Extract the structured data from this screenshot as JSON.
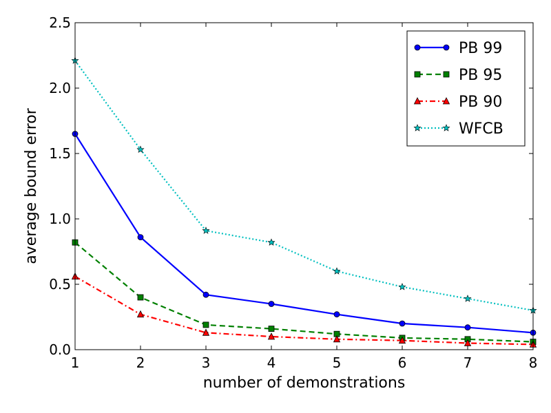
{
  "chart_data": {
    "type": "line",
    "title": "",
    "xlabel": "number of demonstrations",
    "ylabel": "average bound error",
    "xlim": [
      1,
      8
    ],
    "ylim": [
      0.0,
      2.5
    ],
    "xticks": [
      "1",
      "2",
      "3",
      "4",
      "5",
      "6",
      "7",
      "8"
    ],
    "yticks": [
      "0.0",
      "0.5",
      "1.0",
      "1.5",
      "2.0",
      "2.5"
    ],
    "grid": false,
    "legend_position": "top-right",
    "x": [
      1,
      2,
      3,
      4,
      5,
      6,
      7,
      8
    ],
    "series": [
      {
        "name": "PB 99",
        "color": "#0000ff",
        "linestyle": "solid",
        "marker": "circle",
        "values": [
          1.65,
          0.86,
          0.42,
          0.35,
          0.27,
          0.2,
          0.17,
          0.13
        ]
      },
      {
        "name": "PB 95",
        "color": "#008000",
        "linestyle": "dashed",
        "marker": "square",
        "values": [
          0.82,
          0.4,
          0.19,
          0.16,
          0.12,
          0.09,
          0.08,
          0.06
        ]
      },
      {
        "name": "PB 90",
        "color": "#ff0000",
        "linestyle": "dashdot",
        "marker": "triangle",
        "values": [
          0.56,
          0.27,
          0.13,
          0.1,
          0.08,
          0.07,
          0.05,
          0.04
        ]
      },
      {
        "name": "WFCB",
        "color": "#00bfbf",
        "linestyle": "dotted",
        "marker": "star",
        "values": [
          2.21,
          1.53,
          0.91,
          0.82,
          0.6,
          0.48,
          0.39,
          0.3
        ]
      }
    ]
  }
}
